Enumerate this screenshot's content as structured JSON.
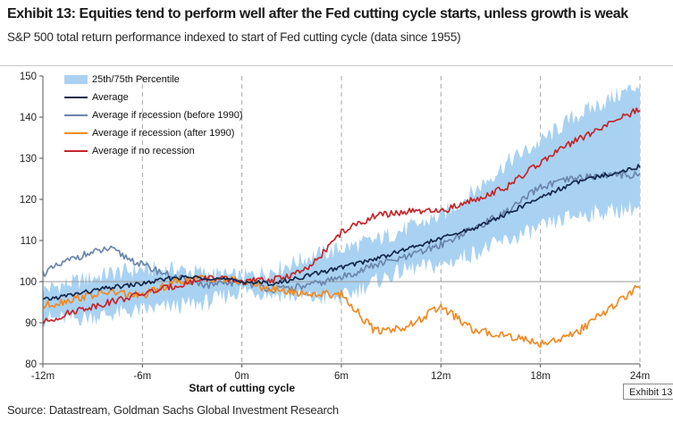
{
  "title": "Exhibit 13: Equities tend to perform well after the Fed cutting cycle starts, unless growth is weak",
  "subtitle": "S&P 500 total return performance indexed to start of Fed cutting cycle (data since 1955)",
  "source": "Source: Datastream, Goldman Sachs Global Investment Research",
  "exhibit_tag": "Exhibit 13",
  "colors": {
    "band": "#a9d2f2",
    "average": "#13284a",
    "recession_before_1990": "#6b86ad",
    "recession_after_1990": "#f08a24",
    "no_recession": "#c3272b",
    "grid": "#a8a8a8",
    "axis": "#555555"
  },
  "chart_data": {
    "type": "line",
    "title": "Exhibit 13: Equities tend to perform well after the Fed cutting cycle starts, unless growth is weak",
    "xlabel": "Start of cutting cycle",
    "ylabel": "",
    "xlim": [
      -12,
      24
    ],
    "ylim": [
      80,
      150
    ],
    "x_ticks": [
      -12,
      -6,
      0,
      6,
      12,
      18,
      24
    ],
    "x_tick_labels": [
      "-12m",
      "-6m",
      "0m",
      "6m",
      "12m",
      "18m",
      "24m"
    ],
    "y_ticks": [
      80,
      90,
      100,
      110,
      120,
      130,
      140,
      150
    ],
    "y_tick_labels": [
      "80",
      "90",
      "100",
      "110",
      "120",
      "130",
      "140",
      "150"
    ],
    "vertical_gridlines": "dashed at -6m, 0m, 6m, 12m, 18m, 24m",
    "reference_line": 100,
    "legend_position": "top-left",
    "band": {
      "name": "25th/75th Percentile",
      "x": [
        -12,
        -10,
        -8,
        -6,
        -4,
        -2,
        0,
        2,
        4,
        6,
        8,
        10,
        12,
        14,
        16,
        18,
        20,
        22,
        24
      ],
      "lower": [
        91,
        91,
        92,
        93,
        94,
        95,
        98,
        97,
        96,
        96,
        100,
        103,
        104,
        107,
        110,
        113,
        116,
        117,
        118
      ],
      "upper": [
        98,
        100,
        102,
        103,
        103,
        102,
        101,
        103,
        106,
        108,
        110,
        113,
        116,
        122,
        129,
        134,
        140,
        144,
        148
      ]
    },
    "series": [
      {
        "name": "Average",
        "x": [
          -12,
          -10,
          -8,
          -6,
          -4,
          -2,
          0,
          2,
          4,
          6,
          8,
          10,
          12,
          14,
          16,
          18,
          20,
          22,
          24
        ],
        "values": [
          95.5,
          97,
          98.5,
          99.5,
          101,
          101,
          100,
          99.5,
          101.5,
          103.5,
          105.5,
          108,
          110.5,
          113,
          116.5,
          120.5,
          124,
          126,
          128
        ]
      },
      {
        "name": "Average if recession (before 1990)",
        "x": [
          -12,
          -10,
          -8,
          -6,
          -4,
          -2,
          0,
          2,
          4,
          6,
          8,
          10,
          12,
          14,
          16,
          18,
          20,
          22,
          24
        ],
        "values": [
          102,
          106,
          108,
          104,
          101,
          99,
          100,
          98,
          99,
          101,
          104,
          106,
          109,
          113,
          117,
          123,
          125,
          126,
          126
        ]
      },
      {
        "name": "Average if recession (after 1990)",
        "x": [
          -12,
          -10,
          -8,
          -6,
          -4,
          -2,
          0,
          2,
          4,
          6,
          8,
          10,
          12,
          14,
          16,
          18,
          20,
          22,
          24
        ],
        "values": [
          94,
          96,
          97.5,
          96.5,
          100,
          101,
          100,
          98,
          97,
          97,
          88,
          89,
          94,
          88,
          87,
          85,
          87,
          93,
          99
        ]
      },
      {
        "name": "Average if no recession",
        "x": [
          -12,
          -10,
          -8,
          -6,
          -4,
          -2,
          0,
          2,
          4,
          6,
          8,
          10,
          12,
          14,
          16,
          18,
          20,
          22,
          24
        ],
        "values": [
          90,
          93,
          95,
          97,
          99,
          101,
          100,
          100.5,
          103,
          112,
          116,
          117,
          117,
          120,
          123,
          129,
          134,
          138,
          142
        ]
      }
    ]
  }
}
